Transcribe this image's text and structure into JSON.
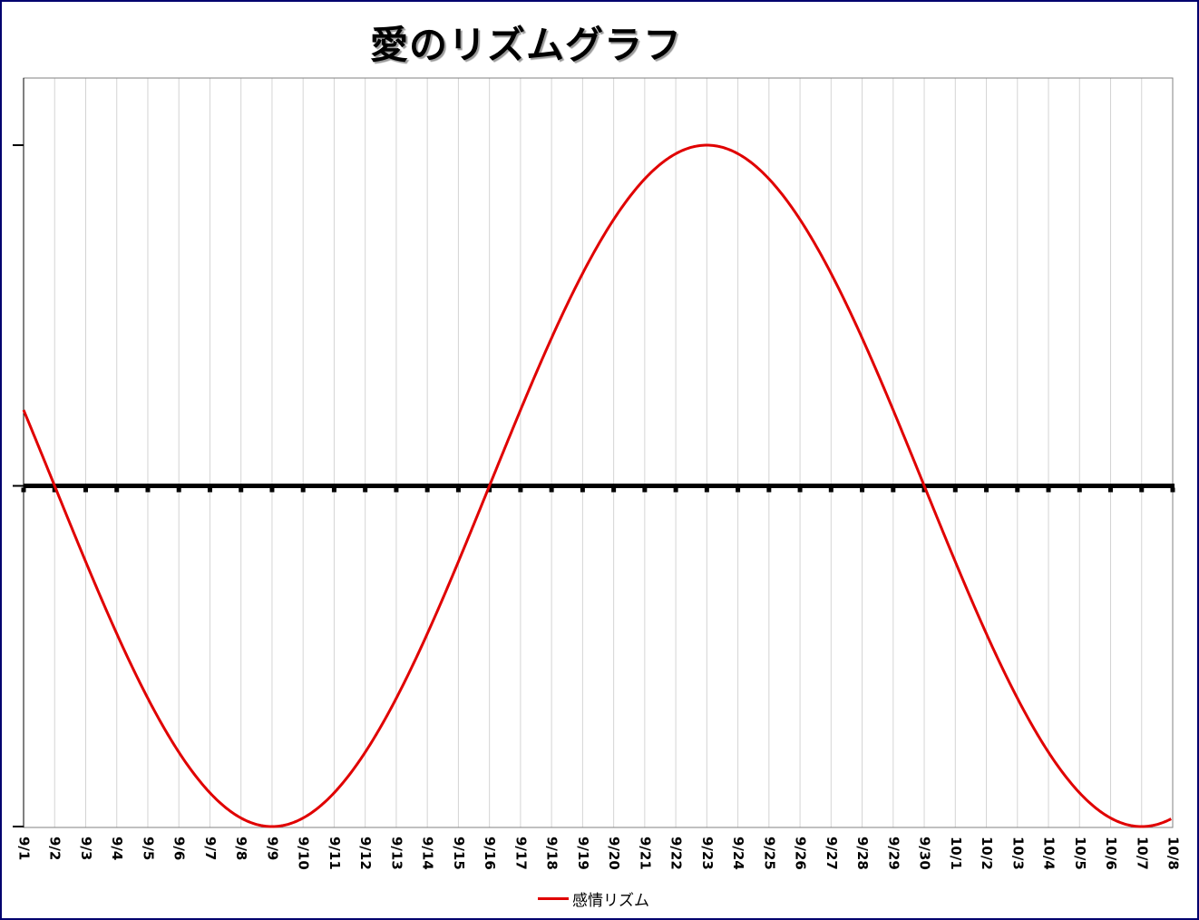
{
  "chart_data": {
    "type": "line",
    "title": "愛のリズムグラフ",
    "xlabel": "",
    "ylabel": "",
    "categories": [
      "9/1",
      "9/2",
      "9/3",
      "9/4",
      "9/5",
      "9/6",
      "9/7",
      "9/8",
      "9/9",
      "9/10",
      "9/11",
      "9/12",
      "9/13",
      "9/14",
      "9/15",
      "9/16",
      "9/17",
      "9/18",
      "9/19",
      "9/20",
      "9/21",
      "9/22",
      "9/23",
      "9/24",
      "9/25",
      "9/26",
      "9/27",
      "9/28",
      "9/29",
      "9/30",
      "10/1",
      "10/2",
      "10/3",
      "10/4",
      "10/5",
      "10/6",
      "10/7",
      "10/8"
    ],
    "ylim": [
      -1,
      1
    ],
    "grid": "vertical",
    "legend_position": "bottom",
    "series": [
      {
        "name": "感情リズム",
        "color": "#e00000",
        "period_days": 28,
        "zero_cross_up_day": 15,
        "values": [
          0.223,
          0.0,
          -0.223,
          -0.434,
          -0.623,
          -0.782,
          -0.901,
          -0.975,
          -1.0,
          -0.975,
          -0.901,
          -0.782,
          -0.623,
          -0.434,
          -0.223,
          0.0,
          0.223,
          0.434,
          0.623,
          0.782,
          0.901,
          0.975,
          1.0,
          0.975,
          0.901,
          0.782,
          0.623,
          0.434,
          0.223,
          0.0,
          -0.223,
          -0.434,
          -0.623,
          -0.782,
          -0.901,
          -0.975,
          -1.0,
          -0.975
        ]
      }
    ]
  }
}
